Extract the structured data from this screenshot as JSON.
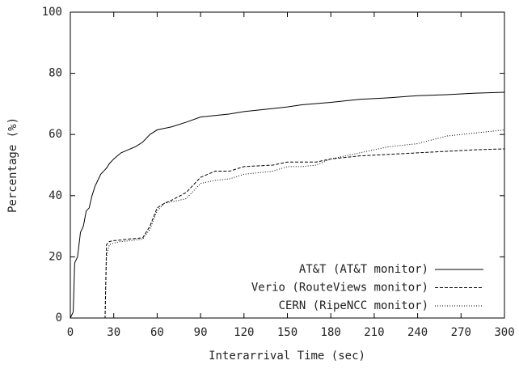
{
  "chart_data": {
    "type": "line",
    "xlabel": "Interarrival Time (sec)",
    "ylabel": "Percentage (%)",
    "x": [
      0,
      2,
      3,
      5,
      7,
      9,
      11,
      13,
      15,
      17,
      19,
      21,
      23,
      24,
      25,
      27,
      30,
      35,
      40,
      45,
      50,
      55,
      60,
      65,
      70,
      80,
      90,
      100,
      110,
      120,
      140,
      150,
      160,
      170,
      180,
      200,
      220,
      240,
      260,
      280,
      300
    ],
    "series": [
      {
        "name": "AT&T (AT&T monitor)",
        "color": "#000000",
        "dash": "none",
        "values": [
          0,
          2,
          18,
          20,
          28,
          30,
          35,
          36,
          40,
          43,
          45,
          47,
          48,
          48.5,
          49,
          50.5,
          52,
          54,
          55,
          56,
          57.5,
          60,
          61.5,
          62,
          62.5,
          64,
          65.7,
          66.2,
          66.7,
          67.5,
          68.5,
          69,
          69.7,
          70.1,
          70.5,
          71.5,
          72,
          72.7,
          73,
          73.5,
          73.8
        ]
      },
      {
        "name": "Verio (RouteViews monitor)",
        "color": "#000000",
        "dash": "4,2",
        "values": [
          0,
          0,
          0,
          0,
          0,
          0,
          0,
          0,
          0,
          0,
          0,
          0,
          0,
          0,
          24,
          25,
          25.3,
          25.5,
          25.8,
          26,
          26.2,
          30,
          36,
          37.5,
          38.5,
          41,
          46,
          48,
          48,
          49.5,
          50,
          51,
          51,
          51,
          52,
          53,
          53.5,
          54,
          54.5,
          55,
          55.3
        ]
      },
      {
        "name": "CERN (RipeNCC monitor)",
        "color": "#000000",
        "dash": "1,2",
        "values": [
          0,
          0,
          0,
          0,
          0,
          0,
          0,
          0,
          0,
          0,
          0,
          0,
          0,
          0,
          20,
          24,
          24.5,
          25,
          25.2,
          25.5,
          25.8,
          29,
          35,
          37.5,
          38,
          39,
          44,
          45,
          45.5,
          47,
          48,
          49.5,
          49.5,
          50,
          52,
          54,
          56,
          57,
          59.5,
          60.5,
          61.5
        ]
      }
    ],
    "xlim": [
      0,
      300
    ],
    "xticks": [
      0,
      30,
      60,
      90,
      120,
      150,
      180,
      210,
      240,
      270,
      300
    ],
    "ylim": [
      0,
      100
    ],
    "yticks": [
      0,
      20,
      40,
      60,
      80,
      100
    ],
    "grid": false,
    "legend": "lower right"
  }
}
